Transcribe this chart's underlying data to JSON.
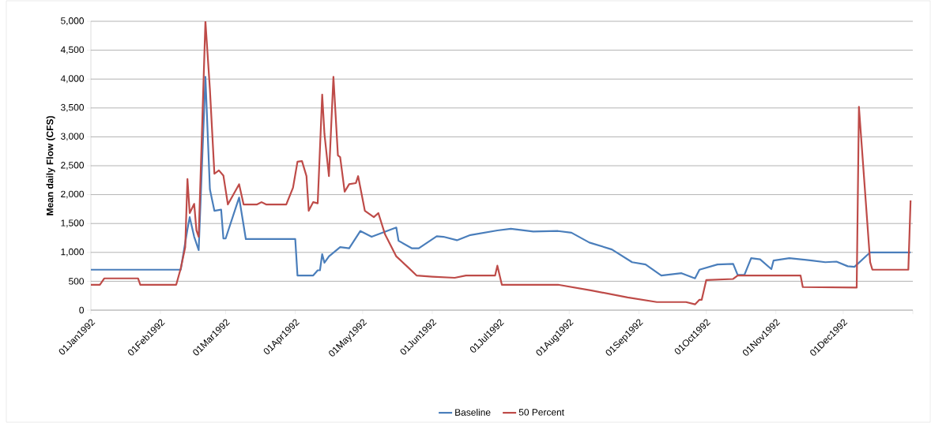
{
  "chart_data": {
    "type": "line",
    "ylabel": "Mean daily Flow (CFS)",
    "xlim": [
      "1992-01-01",
      "1993-01-01"
    ],
    "ylim": [
      0,
      5000
    ],
    "xticks": [
      {
        "value": "1992-01-01",
        "label": "01Jan1992"
      },
      {
        "value": "1992-02-01",
        "label": "01Feb1992"
      },
      {
        "value": "1992-03-01",
        "label": "01Mar1992"
      },
      {
        "value": "1992-04-01",
        "label": "01Apr1992"
      },
      {
        "value": "1992-05-01",
        "label": "01May1992"
      },
      {
        "value": "1992-06-01",
        "label": "01Jun1992"
      },
      {
        "value": "1992-07-01",
        "label": "01Jul1992"
      },
      {
        "value": "1992-08-01",
        "label": "01Aug1992"
      },
      {
        "value": "1992-09-01",
        "label": "01Sep1992"
      },
      {
        "value": "1992-10-01",
        "label": "01Oct1992"
      },
      {
        "value": "1992-11-01",
        "label": "01Nov1992"
      },
      {
        "value": "1992-12-01",
        "label": "01Dec1992"
      },
      {
        "value": "1993-01-01",
        "label": null
      }
    ],
    "yticks": [
      0,
      500,
      {
        "value": 1000,
        "label": "1,000"
      },
      {
        "value": 1500,
        "label": "1,500"
      },
      {
        "value": 2000,
        "label": "2,000"
      },
      {
        "value": 2500,
        "label": "2,500"
      },
      {
        "value": 3000,
        "label": "3,000"
      },
      {
        "value": 3500,
        "label": "3,500"
      },
      {
        "value": 4000,
        "label": "4,000"
      },
      {
        "value": 4500,
        "label": "4,500"
      },
      {
        "value": 5000,
        "label": "5,000"
      }
    ],
    "grid": "y",
    "legend": "bottom",
    "series": [
      {
        "name": "Baseline",
        "color": "#4a7ebb",
        "x": [
          "1992-01-01",
          "1992-02-10",
          "1992-02-13",
          "1992-02-14",
          "1992-02-16",
          "1992-02-18",
          "1992-02-21",
          "1992-02-23",
          "1992-02-25",
          "1992-02-28",
          "1992-02-29",
          "1992-03-01",
          "1992-03-07",
          "1992-03-10",
          "1992-04-01",
          "1992-04-02",
          "1992-04-09",
          "1992-04-11",
          "1992-04-12",
          "1992-04-13",
          "1992-04-14",
          "1992-04-16",
          "1992-04-21",
          "1992-04-25",
          "1992-04-30",
          "1992-05-05",
          "1992-05-16",
          "1992-05-17",
          "1992-05-23",
          "1992-05-26",
          "1992-06-03",
          "1992-06-06",
          "1992-06-12",
          "1992-06-18",
          "1992-06-30",
          "1992-07-06",
          "1992-07-16",
          "1992-07-27",
          "1992-08-02",
          "1992-08-10",
          "1992-08-20",
          "1992-08-29",
          "1992-09-04",
          "1992-09-11",
          "1992-09-20",
          "1992-09-26",
          "1992-09-28",
          "1992-10-06",
          "1992-10-13",
          "1992-10-15",
          "1992-10-18",
          "1992-10-21",
          "1992-10-25",
          "1992-10-30",
          "1992-10-31",
          "1992-11-07",
          "1992-11-17",
          "1992-11-23",
          "1992-11-28",
          "1992-12-03",
          "1992-12-06",
          "1992-12-13",
          "1992-12-31"
        ],
        "values": [
          700,
          700,
          1400,
          1610,
          1270,
          1040,
          4040,
          2090,
          1720,
          1740,
          1240,
          1240,
          1950,
          1230,
          1230,
          600,
          600,
          690,
          690,
          970,
          820,
          930,
          1090,
          1070,
          1370,
          1270,
          1430,
          1200,
          1070,
          1070,
          1280,
          1270,
          1210,
          1300,
          1380,
          1410,
          1360,
          1370,
          1340,
          1170,
          1050,
          830,
          790,
          600,
          640,
          550,
          700,
          790,
          800,
          610,
          610,
          900,
          880,
          710,
          860,
          900,
          860,
          830,
          840,
          760,
          750,
          1000,
          1000
        ]
      },
      {
        "name": "50 Percent",
        "color": "#be4b48",
        "x": [
          "1992-01-01",
          "1992-01-05",
          "1992-01-07",
          "1992-01-22",
          "1992-01-23",
          "1992-02-08",
          "1992-02-10",
          "1992-02-12",
          "1992-02-13",
          "1992-02-14",
          "1992-02-16",
          "1992-02-17",
          "1992-02-18",
          "1992-02-21",
          "1992-02-23",
          "1992-02-25",
          "1992-02-27",
          "1992-02-29",
          "1992-03-02",
          "1992-03-07",
          "1992-03-09",
          "1992-03-15",
          "1992-03-17",
          "1992-03-19",
          "1992-03-28",
          "1992-03-31",
          "1992-04-02",
          "1992-04-04",
          "1992-04-06",
          "1992-04-07",
          "1992-04-09",
          "1992-04-11",
          "1992-04-13",
          "1992-04-14",
          "1992-04-16",
          "1992-04-18",
          "1992-04-20",
          "1992-04-21",
          "1992-04-23",
          "1992-04-25",
          "1992-04-28",
          "1992-04-29",
          "1992-05-02",
          "1992-05-06",
          "1992-05-08",
          "1992-05-11",
          "1992-05-16",
          "1992-05-21",
          "1992-05-25",
          "1992-06-01",
          "1992-06-11",
          "1992-06-16",
          "1992-06-29",
          "1992-06-30",
          "1992-07-02",
          "1992-07-27",
          "1992-08-11",
          "1992-08-27",
          "1992-09-09",
          "1992-09-22",
          "1992-09-26",
          "1992-09-28",
          "1992-09-29",
          "1992-10-01",
          "1992-10-13",
          "1992-10-15",
          "1992-11-12",
          "1992-11-13",
          "1992-12-07",
          "1992-12-08",
          "1992-12-13",
          "1992-12-14",
          "1992-12-30",
          "1992-12-31"
        ],
        "values": [
          440,
          440,
          550,
          550,
          440,
          440,
          720,
          1090,
          2270,
          1680,
          1840,
          1380,
          1270,
          5000,
          3820,
          2360,
          2420,
          2330,
          1830,
          2180,
          1830,
          1830,
          1870,
          1830,
          1830,
          2120,
          2570,
          2580,
          2320,
          1720,
          1870,
          1850,
          3730,
          3050,
          2320,
          4040,
          2680,
          2650,
          2050,
          2180,
          2200,
          2320,
          1720,
          1610,
          1680,
          1310,
          930,
          750,
          600,
          580,
          560,
          600,
          600,
          770,
          440,
          440,
          340,
          220,
          140,
          140,
          100,
          180,
          180,
          520,
          540,
          600,
          600,
          400,
          390,
          3520,
          830,
          700,
          700,
          1900
        ]
      }
    ]
  }
}
